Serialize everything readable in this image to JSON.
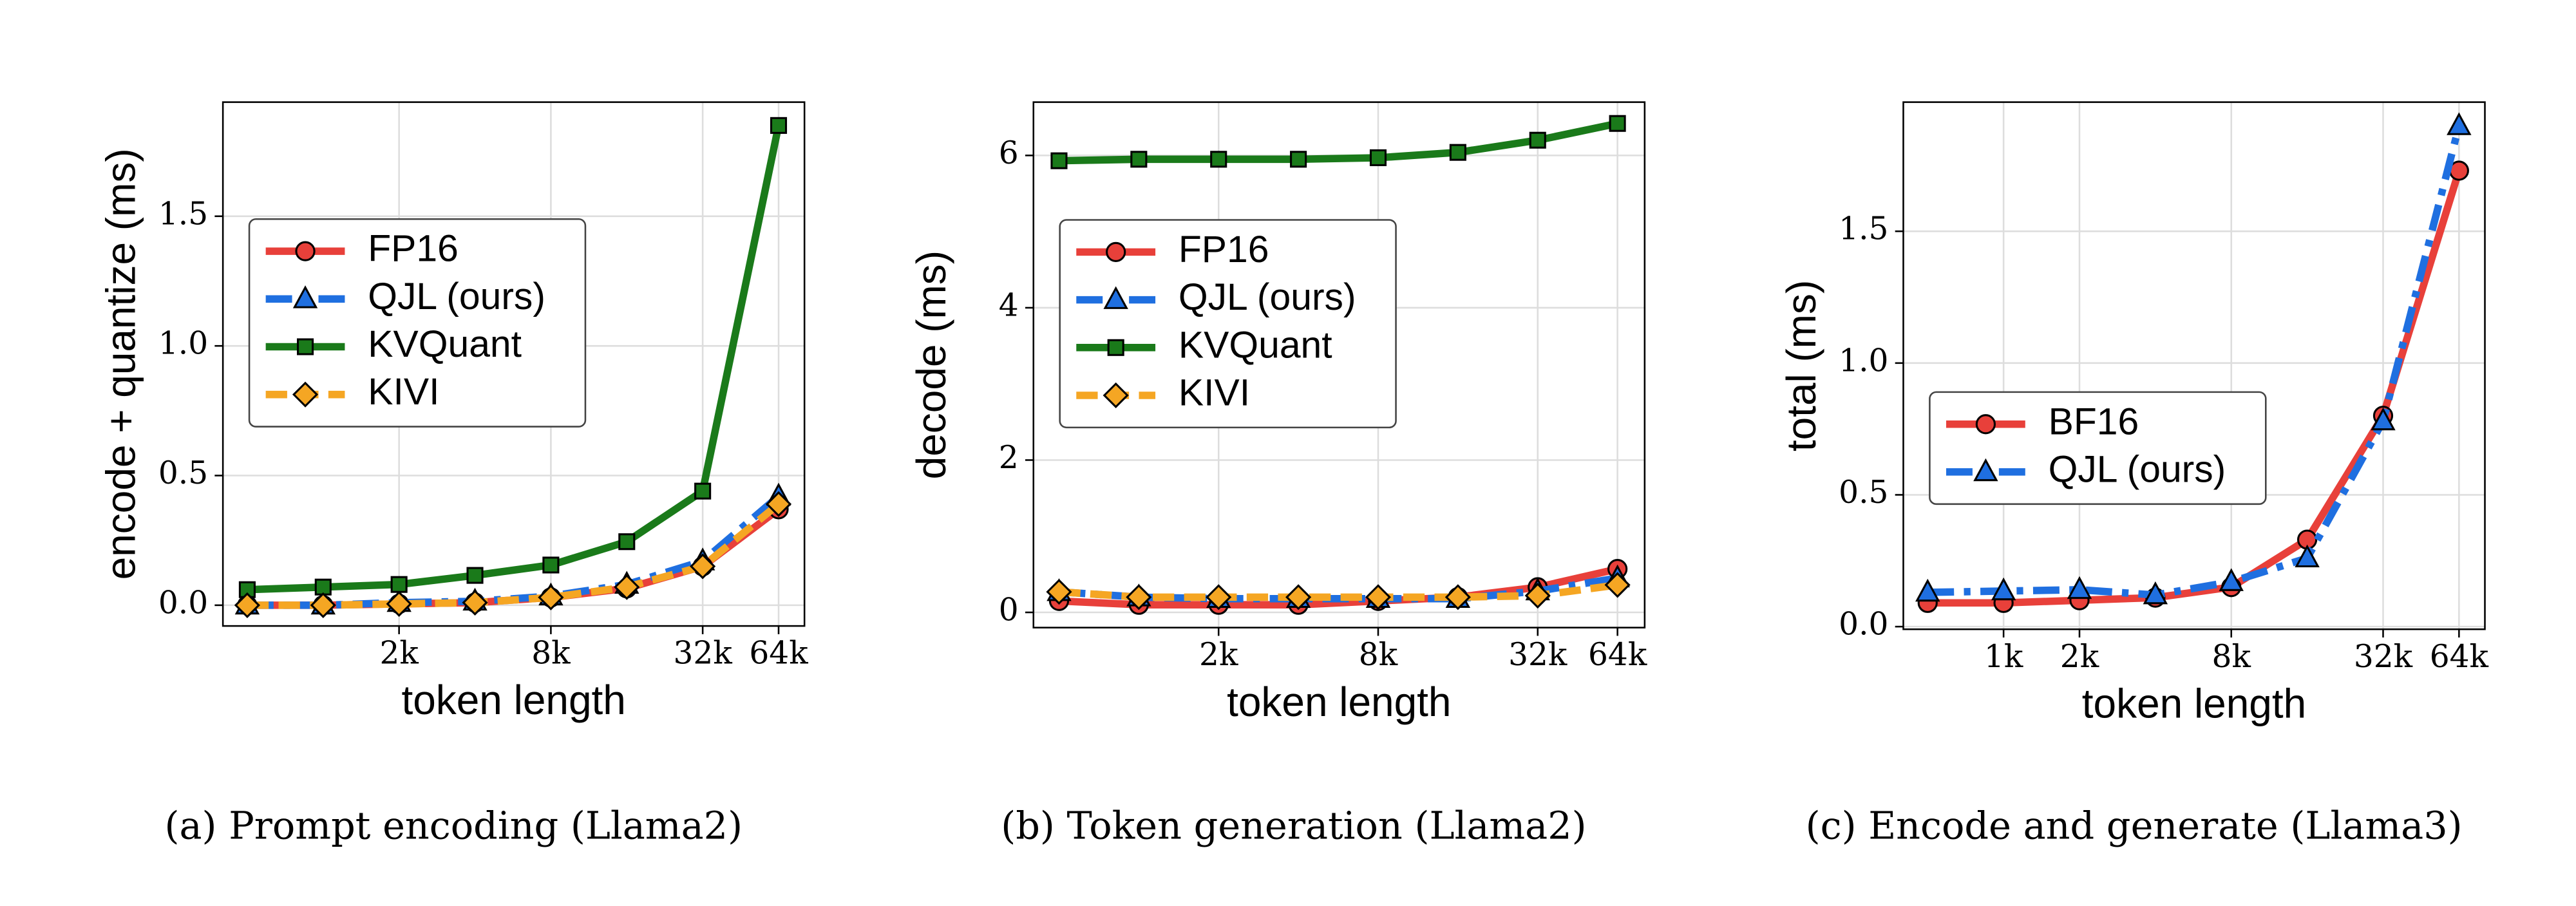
{
  "chart_data": [
    {
      "type": "line",
      "caption": "(a) Prompt encoding (Llama2)",
      "xlabel": "token length",
      "ylabel": "encode + quantize (ms)",
      "x": [
        512,
        1024,
        2048,
        4096,
        8192,
        16384,
        32768,
        65536
      ],
      "xscale": "log2",
      "xlim": [
        410,
        83000
      ],
      "xticks": [
        {
          "value": 2048,
          "label": "2k"
        },
        {
          "value": 8192,
          "label": "8k"
        },
        {
          "value": 32768,
          "label": "32k"
        },
        {
          "value": 65536,
          "label": "64k"
        }
      ],
      "ylim": [
        -0.08,
        1.94
      ],
      "yticks": [
        {
          "value": 0,
          "label": "0.0"
        },
        0.5,
        {
          "value": 1,
          "label": "1.0"
        },
        1.5
      ],
      "grid": true,
      "legend": "center left",
      "series": [
        {
          "name": "FP16",
          "color": "#e8403a",
          "linestyle": "solid",
          "marker": "circle",
          "values": [
            0.0,
            0.0,
            0.005,
            0.01,
            0.03,
            0.065,
            0.15,
            0.37
          ]
        },
        {
          "name": "QJL (ours)",
          "color": "#1f6fe0",
          "linestyle": "dashdot",
          "marker": "triangle",
          "values": [
            0.0,
            0.0,
            0.01,
            0.015,
            0.035,
            0.08,
            0.17,
            0.42
          ]
        },
        {
          "name": "KVQuant",
          "color": "#1a7a1a",
          "linestyle": "solid",
          "marker": "square",
          "values": [
            0.06,
            0.07,
            0.08,
            0.115,
            0.155,
            0.245,
            0.44,
            1.85
          ]
        },
        {
          "name": "KIVI",
          "color": "#f5a623",
          "linestyle": "dashed",
          "marker": "diamond",
          "values": [
            0.0,
            0.0,
            0.005,
            0.01,
            0.03,
            0.07,
            0.15,
            0.39
          ]
        }
      ]
    },
    {
      "type": "line",
      "caption": "(b) Token generation (Llama2)",
      "xlabel": "token length",
      "ylabel": "decode (ms)",
      "x": [
        512,
        1024,
        2048,
        4096,
        8192,
        16384,
        32768,
        65536
      ],
      "xscale": "log2",
      "xlim": [
        410,
        83000
      ],
      "xticks": [
        {
          "value": 2048,
          "label": "2k"
        },
        {
          "value": 8192,
          "label": "8k"
        },
        {
          "value": 32768,
          "label": "32k"
        },
        {
          "value": 65536,
          "label": "64k"
        }
      ],
      "ylim": [
        -0.2,
        6.7
      ],
      "yticks": [
        0,
        2,
        4,
        6
      ],
      "grid": true,
      "legend": "center left",
      "series": [
        {
          "name": "FP16",
          "color": "#e8403a",
          "linestyle": "solid",
          "marker": "circle",
          "values": [
            0.15,
            0.1,
            0.1,
            0.1,
            0.15,
            0.2,
            0.33,
            0.57
          ]
        },
        {
          "name": "QJL (ours)",
          "color": "#1f6fe0",
          "linestyle": "dashdot",
          "marker": "triangle",
          "values": [
            0.27,
            0.2,
            0.18,
            0.18,
            0.18,
            0.18,
            0.28,
            0.45
          ]
        },
        {
          "name": "KVQuant",
          "color": "#1a7a1a",
          "linestyle": "solid",
          "marker": "square",
          "values": [
            5.93,
            5.95,
            5.95,
            5.95,
            5.97,
            6.04,
            6.2,
            6.42
          ]
        },
        {
          "name": "KIVI",
          "color": "#f5a623",
          "linestyle": "dashed",
          "marker": "diamond",
          "values": [
            0.27,
            0.2,
            0.2,
            0.2,
            0.2,
            0.2,
            0.22,
            0.36
          ]
        }
      ]
    },
    {
      "type": "line",
      "caption": "(c) Encode and generate (Llama3)",
      "xlabel": "token length",
      "ylabel": "total (ms)",
      "x": [
        512,
        1024,
        2048,
        4096,
        8192,
        16384,
        32768,
        65536
      ],
      "xscale": "log2",
      "xlim": [
        410,
        83000
      ],
      "xticks": [
        {
          "value": 1024,
          "label": "1k"
        },
        {
          "value": 2048,
          "label": "2k"
        },
        {
          "value": 8192,
          "label": "8k"
        },
        {
          "value": 32768,
          "label": "32k"
        },
        {
          "value": 65536,
          "label": "64k"
        }
      ],
      "ylim": [
        -0.01,
        1.99
      ],
      "yticks": [
        {
          "value": 0,
          "label": "0.0"
        },
        0.5,
        {
          "value": 1,
          "label": "1.0"
        },
        1.5
      ],
      "grid": true,
      "legend": "center left",
      "series": [
        {
          "name": "BF16",
          "color": "#e8403a",
          "linestyle": "solid",
          "marker": "circle",
          "values": [
            0.09,
            0.09,
            0.1,
            0.11,
            0.15,
            0.33,
            0.8,
            1.73
          ]
        },
        {
          "name": "QJL (ours)",
          "color": "#1f6fe0",
          "linestyle": "dashdot",
          "marker": "triangle",
          "values": [
            0.13,
            0.135,
            0.14,
            0.12,
            0.17,
            0.26,
            0.78,
            1.9
          ]
        }
      ]
    }
  ]
}
